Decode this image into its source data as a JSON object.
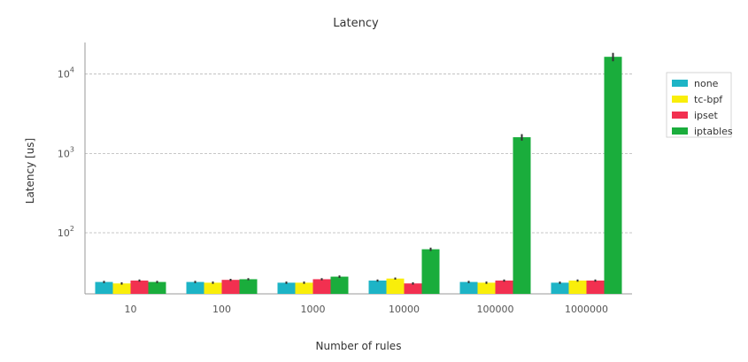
{
  "chart_data": {
    "type": "bar",
    "title": "Latency",
    "xlabel": "Number of rules",
    "ylabel": "Latency [us]",
    "yscale": "log",
    "ylim": [
      17,
      25000
    ],
    "categories": [
      "10",
      "100",
      "1000",
      "10000",
      "100000",
      "1000000"
    ],
    "series": [
      {
        "name": "none",
        "values": [
          24,
          24,
          23.5,
          25,
          24,
          23.5
        ],
        "errors": [
          0.8,
          0.8,
          0.8,
          0.8,
          0.8,
          0.8
        ]
      },
      {
        "name": "tc-bpf",
        "values": [
          23,
          23.5,
          23.5,
          26.5,
          23.5,
          25
        ],
        "errors": [
          0.8,
          0.8,
          0.8,
          0.8,
          0.8,
          0.8
        ]
      },
      {
        "name": "ipset",
        "values": [
          25,
          25.5,
          26,
          23,
          25,
          25
        ],
        "errors": [
          0.8,
          0.8,
          0.8,
          0.8,
          0.8,
          0.8
        ]
      },
      {
        "name": "iptables",
        "values": [
          24,
          26,
          28,
          62,
          1600,
          16500
        ],
        "errors": [
          0.8,
          0.8,
          1,
          3,
          150,
          2000
        ]
      }
    ],
    "colors": [
      "#1db4c6",
      "#f9ee0a",
      "#f23050",
      "#1aad3c"
    ],
    "yticks": [
      {
        "value": 100,
        "base": "10",
        "exp": "2"
      },
      {
        "value": 1000,
        "base": "10",
        "exp": "3"
      },
      {
        "value": 10000,
        "base": "10",
        "exp": "4"
      }
    ],
    "grid": true,
    "grid_style": "dashed horizontal",
    "legend_position": "right"
  }
}
